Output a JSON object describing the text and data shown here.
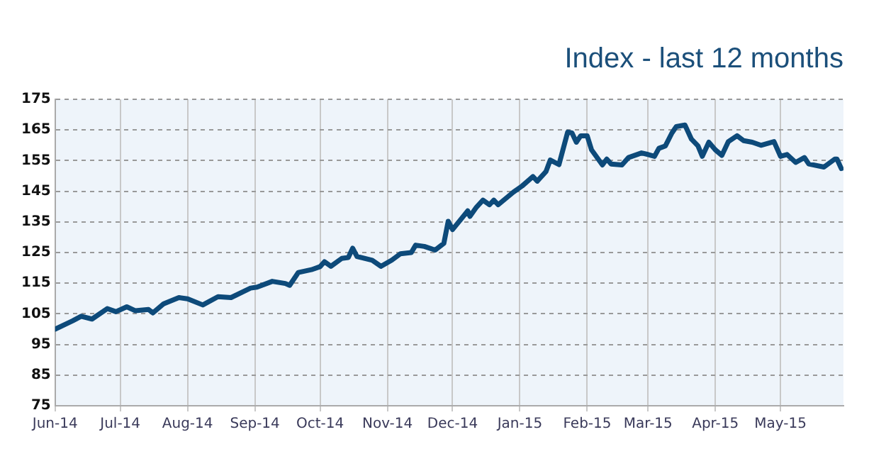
{
  "chart_data": {
    "type": "line",
    "title": "Index - last 12 months",
    "x": [
      "2014-06-01",
      "2014-06-09",
      "2014-06-13",
      "2014-06-18",
      "2014-06-25",
      "2014-06-29",
      "2014-07-04",
      "2014-07-08",
      "2014-07-14",
      "2014-07-16",
      "2014-07-21",
      "2014-07-28",
      "2014-08-01",
      "2014-08-08",
      "2014-08-15",
      "2014-08-21",
      "2014-08-30",
      "2014-09-02",
      "2014-09-09",
      "2014-09-15",
      "2014-09-17",
      "2014-09-21",
      "2014-09-27",
      "2014-10-01",
      "2014-10-03",
      "2014-10-06",
      "2014-10-11",
      "2014-10-14",
      "2014-10-16",
      "2014-10-18",
      "2014-10-25",
      "2014-10-29",
      "2014-11-03",
      "2014-11-07",
      "2014-11-12",
      "2014-11-14",
      "2014-11-18",
      "2014-11-23",
      "2014-11-27",
      "2014-11-29",
      "2014-12-01",
      "2014-12-08",
      "2014-12-09",
      "2014-12-12",
      "2014-12-15",
      "2014-12-18",
      "2014-12-20",
      "2014-12-22",
      "2014-12-29",
      "2015-01-02",
      "2015-01-07",
      "2015-01-09",
      "2015-01-13",
      "2015-01-15",
      "2015-01-19",
      "2015-01-23",
      "2015-01-25",
      "2015-01-27",
      "2015-01-29",
      "2015-02-01",
      "2015-02-03",
      "2015-02-08",
      "2015-02-10",
      "2015-02-12",
      "2015-02-17",
      "2015-02-20",
      "2015-02-26",
      "2015-03-01",
      "2015-03-04",
      "2015-03-06",
      "2015-03-09",
      "2015-03-12",
      "2015-03-14",
      "2015-03-18",
      "2015-03-21",
      "2015-03-24",
      "2015-03-26",
      "2015-03-29",
      "2015-04-01",
      "2015-04-04",
      "2015-04-07",
      "2015-04-11",
      "2015-04-14",
      "2015-04-18",
      "2015-04-22",
      "2015-04-28",
      "2015-05-01",
      "2015-05-04",
      "2015-05-08",
      "2015-05-12",
      "2015-05-14",
      "2015-05-21",
      "2015-05-26",
      "2015-05-27",
      "2015-05-29"
    ],
    "series": [
      {
        "color": "#0d4a7a",
        "values": [
          100,
          102.7,
          104.2,
          103.3,
          106.7,
          105.7,
          107.3,
          106,
          106.4,
          105.3,
          108.3,
          110.3,
          109.9,
          107.9,
          110.6,
          110.3,
          113.4,
          113.7,
          115.6,
          114.9,
          114.3,
          118.5,
          119.4,
          120.4,
          122,
          120.5,
          123.1,
          123.4,
          126.4,
          123.7,
          122.5,
          120.5,
          122.5,
          124.6,
          125,
          127.4,
          127,
          125.8,
          128,
          135.2,
          132.5,
          138.6,
          136.8,
          139.8,
          142.1,
          140.6,
          142.1,
          140.6,
          144.7,
          146.7,
          149.8,
          148.3,
          151.4,
          155.2,
          153.7,
          164.3,
          164,
          161,
          163.1,
          163.1,
          158.5,
          153.6,
          155.5,
          153.9,
          153.6,
          156,
          157.5,
          157,
          156.4,
          159,
          159.8,
          164,
          166.1,
          166.6,
          162,
          159.8,
          156.4,
          161,
          158.5,
          156.7,
          161.2,
          163.1,
          161.5,
          161,
          160,
          161.2,
          156.4,
          157,
          154.4,
          156,
          153.9,
          152.9,
          155.5,
          155.5,
          152.4
        ]
      }
    ],
    "xlim": [
      "2014-06-01",
      "2015-05-30"
    ],
    "xticks": [
      {
        "value": "2014-06-01",
        "label": "Jun-14"
      },
      {
        "value": "2014-07-01",
        "label": "Jul-14"
      },
      {
        "value": "2014-08-01",
        "label": "Aug-14"
      },
      {
        "value": "2014-09-01",
        "label": "Sep-14"
      },
      {
        "value": "2014-10-01",
        "label": "Oct-14"
      },
      {
        "value": "2014-11-01",
        "label": "Nov-14"
      },
      {
        "value": "2014-12-01",
        "label": "Dec-14"
      },
      {
        "value": "2015-01-01",
        "label": "Jan-15"
      },
      {
        "value": "2015-02-01",
        "label": "Feb-15"
      },
      {
        "value": "2015-03-01",
        "label": "Mar-15"
      },
      {
        "value": "2015-04-01",
        "label": "Apr-15"
      },
      {
        "value": "2015-05-01",
        "label": "May-15"
      }
    ],
    "ylim": [
      75,
      175
    ],
    "yticks": [
      75,
      85,
      95,
      105,
      115,
      125,
      135,
      145,
      155,
      165,
      175
    ],
    "grid": true,
    "legend": false,
    "marker": "none",
    "line_style": "solid"
  }
}
